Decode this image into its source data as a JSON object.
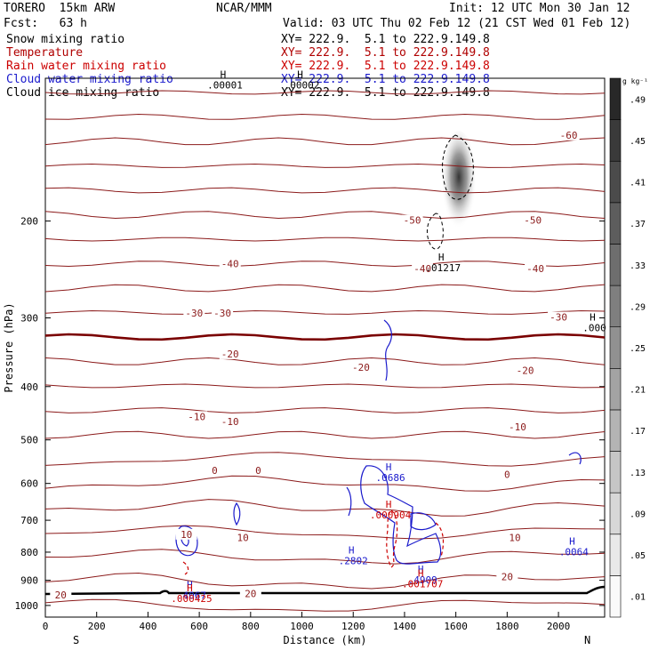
{
  "header": {
    "model": "TORERO  15km ARW",
    "center": "NCAR/MMM",
    "init": "Init: 12 UTC Mon 30 Jan 12",
    "fcst": "Fcst:   63 h",
    "valid": "Valid: 03 UTC Thu 02 Feb 12 (21 CST Wed 01 Feb 12)"
  },
  "legend": [
    {
      "label": "Snow mixing ratio",
      "xy": "XY= 222.9.  5.1 to 222.9.149.8",
      "color": "#000000"
    },
    {
      "label": "Temperature",
      "xy": "XY= 222.9.  5.1 to 222.9.149.8",
      "color": "#b00000"
    },
    {
      "label": "Rain water mixing ratio",
      "xy": "XY= 222.9.  5.1 to 222.9.149.8",
      "color": "#cc0000"
    },
    {
      "label": "Cloud water mixing ratio",
      "xy": "XY= 222.9.  5.1 to 222.9.149.8",
      "color": "#1a1acc"
    },
    {
      "label": "Cloud ice mixing ratio",
      "xy": "XY= 222.9.  5.1 to 222.9.149.8",
      "color": "#000000"
    }
  ],
  "chart_data": {
    "type": "contour",
    "xlabel": "Distance (km)",
    "ylabel": "Pressure (hPa)",
    "x_ticks": [
      0,
      200,
      400,
      600,
      800,
      1000,
      1200,
      1400,
      1600,
      1800,
      2000
    ],
    "y_ticks": [
      200,
      300,
      400,
      500,
      600,
      700,
      800,
      900,
      1000
    ],
    "xlim": [
      0,
      2180
    ],
    "ylim": [
      1050,
      110
    ],
    "y_scale": "log",
    "end_labels": {
      "left": "S",
      "right": "N"
    },
    "colorbar": {
      "unit": "g kg⁻¹",
      "ticks": [
        ".01",
        ".05",
        ".09",
        ".13",
        ".17",
        ".21",
        ".25",
        ".29",
        ".33",
        ".37",
        ".41",
        ".45",
        ".49"
      ]
    },
    "temperature_contour_labels": [
      {
        "text": "-60",
        "x": 2040,
        "p": 140
      },
      {
        "text": "-50",
        "x": 1430,
        "p": 200
      },
      {
        "text": "-50",
        "x": 1900,
        "p": 200
      },
      {
        "text": "-40",
        "x": 720,
        "p": 240
      },
      {
        "text": "-40",
        "x": 1470,
        "p": 245
      },
      {
        "text": "-40",
        "x": 1910,
        "p": 245
      },
      {
        "text": "-30",
        "x": 580,
        "p": 295
      },
      {
        "text": "-30",
        "x": 690,
        "p": 295
      },
      {
        "text": "-30",
        "x": 2000,
        "p": 300
      },
      {
        "text": "-20",
        "x": 720,
        "p": 350
      },
      {
        "text": "-20",
        "x": 1230,
        "p": 370
      },
      {
        "text": "-20",
        "x": 1870,
        "p": 375
      },
      {
        "text": "-10",
        "x": 590,
        "p": 455
      },
      {
        "text": "-10",
        "x": 720,
        "p": 465
      },
      {
        "text": "-10",
        "x": 1840,
        "p": 475
      },
      {
        "text": "0",
        "x": 660,
        "p": 570
      },
      {
        "text": "0",
        "x": 830,
        "p": 570
      },
      {
        "text": "0",
        "x": 1800,
        "p": 580
      },
      {
        "text": "10",
        "x": 550,
        "p": 745
      },
      {
        "text": "10",
        "x": 770,
        "p": 755
      },
      {
        "text": "10",
        "x": 1830,
        "p": 755
      },
      {
        "text": "20",
        "x": 1800,
        "p": 890
      },
      {
        "text": "20",
        "x": 60,
        "p": 960
      },
      {
        "text": "20",
        "x": 800,
        "p": 955
      }
    ],
    "field_markers": [
      {
        "symbol": "H",
        "value": ".00001",
        "x": 700,
        "p": 114,
        "color": "#000000"
      },
      {
        "symbol": "H",
        "value": ".00002",
        "x": 1000,
        "p": 114,
        "color": "#000000"
      },
      {
        "symbol": "H",
        "value": ".01217",
        "x": 1550,
        "p": 245,
        "color": "#000000"
      },
      {
        "symbol": "H",
        "value": ".000",
        "x": 2140,
        "p": 315,
        "color": "#000000"
      },
      {
        "symbol": "H",
        "value": ".0686",
        "x": 1345,
        "p": 590,
        "color": "#1a1acc"
      },
      {
        "symbol": "H",
        "value": ".000904",
        "x": 1345,
        "p": 690,
        "color": "#cc0000"
      },
      {
        "symbol": "H",
        "value": ".0064",
        "x": 2060,
        "p": 805,
        "color": "#1a1acc"
      },
      {
        "symbol": "H",
        "value": ".2802",
        "x": 1200,
        "p": 835,
        "color": "#1a1acc"
      },
      {
        "symbol": "H",
        "value": ".4909",
        "x": 1470,
        "p": 905,
        "color": "#1a1acc"
      },
      {
        "symbol": "H",
        "value": ".001707",
        "x": 1470,
        "p": 920,
        "color": "#cc0000"
      },
      {
        "symbol": "H",
        "value": ".4067",
        "x": 570,
        "p": 965,
        "color": "#1a1acc"
      },
      {
        "symbol": "H",
        "value": ".000425",
        "x": 570,
        "p": 978,
        "color": "#cc0000"
      }
    ]
  },
  "colors": {
    "temperature": "#8b1a1a",
    "zero_isotherm": "#7a0000",
    "rain": "#cc0000",
    "cloud_water": "#1a1acc",
    "ground": "#000000"
  }
}
